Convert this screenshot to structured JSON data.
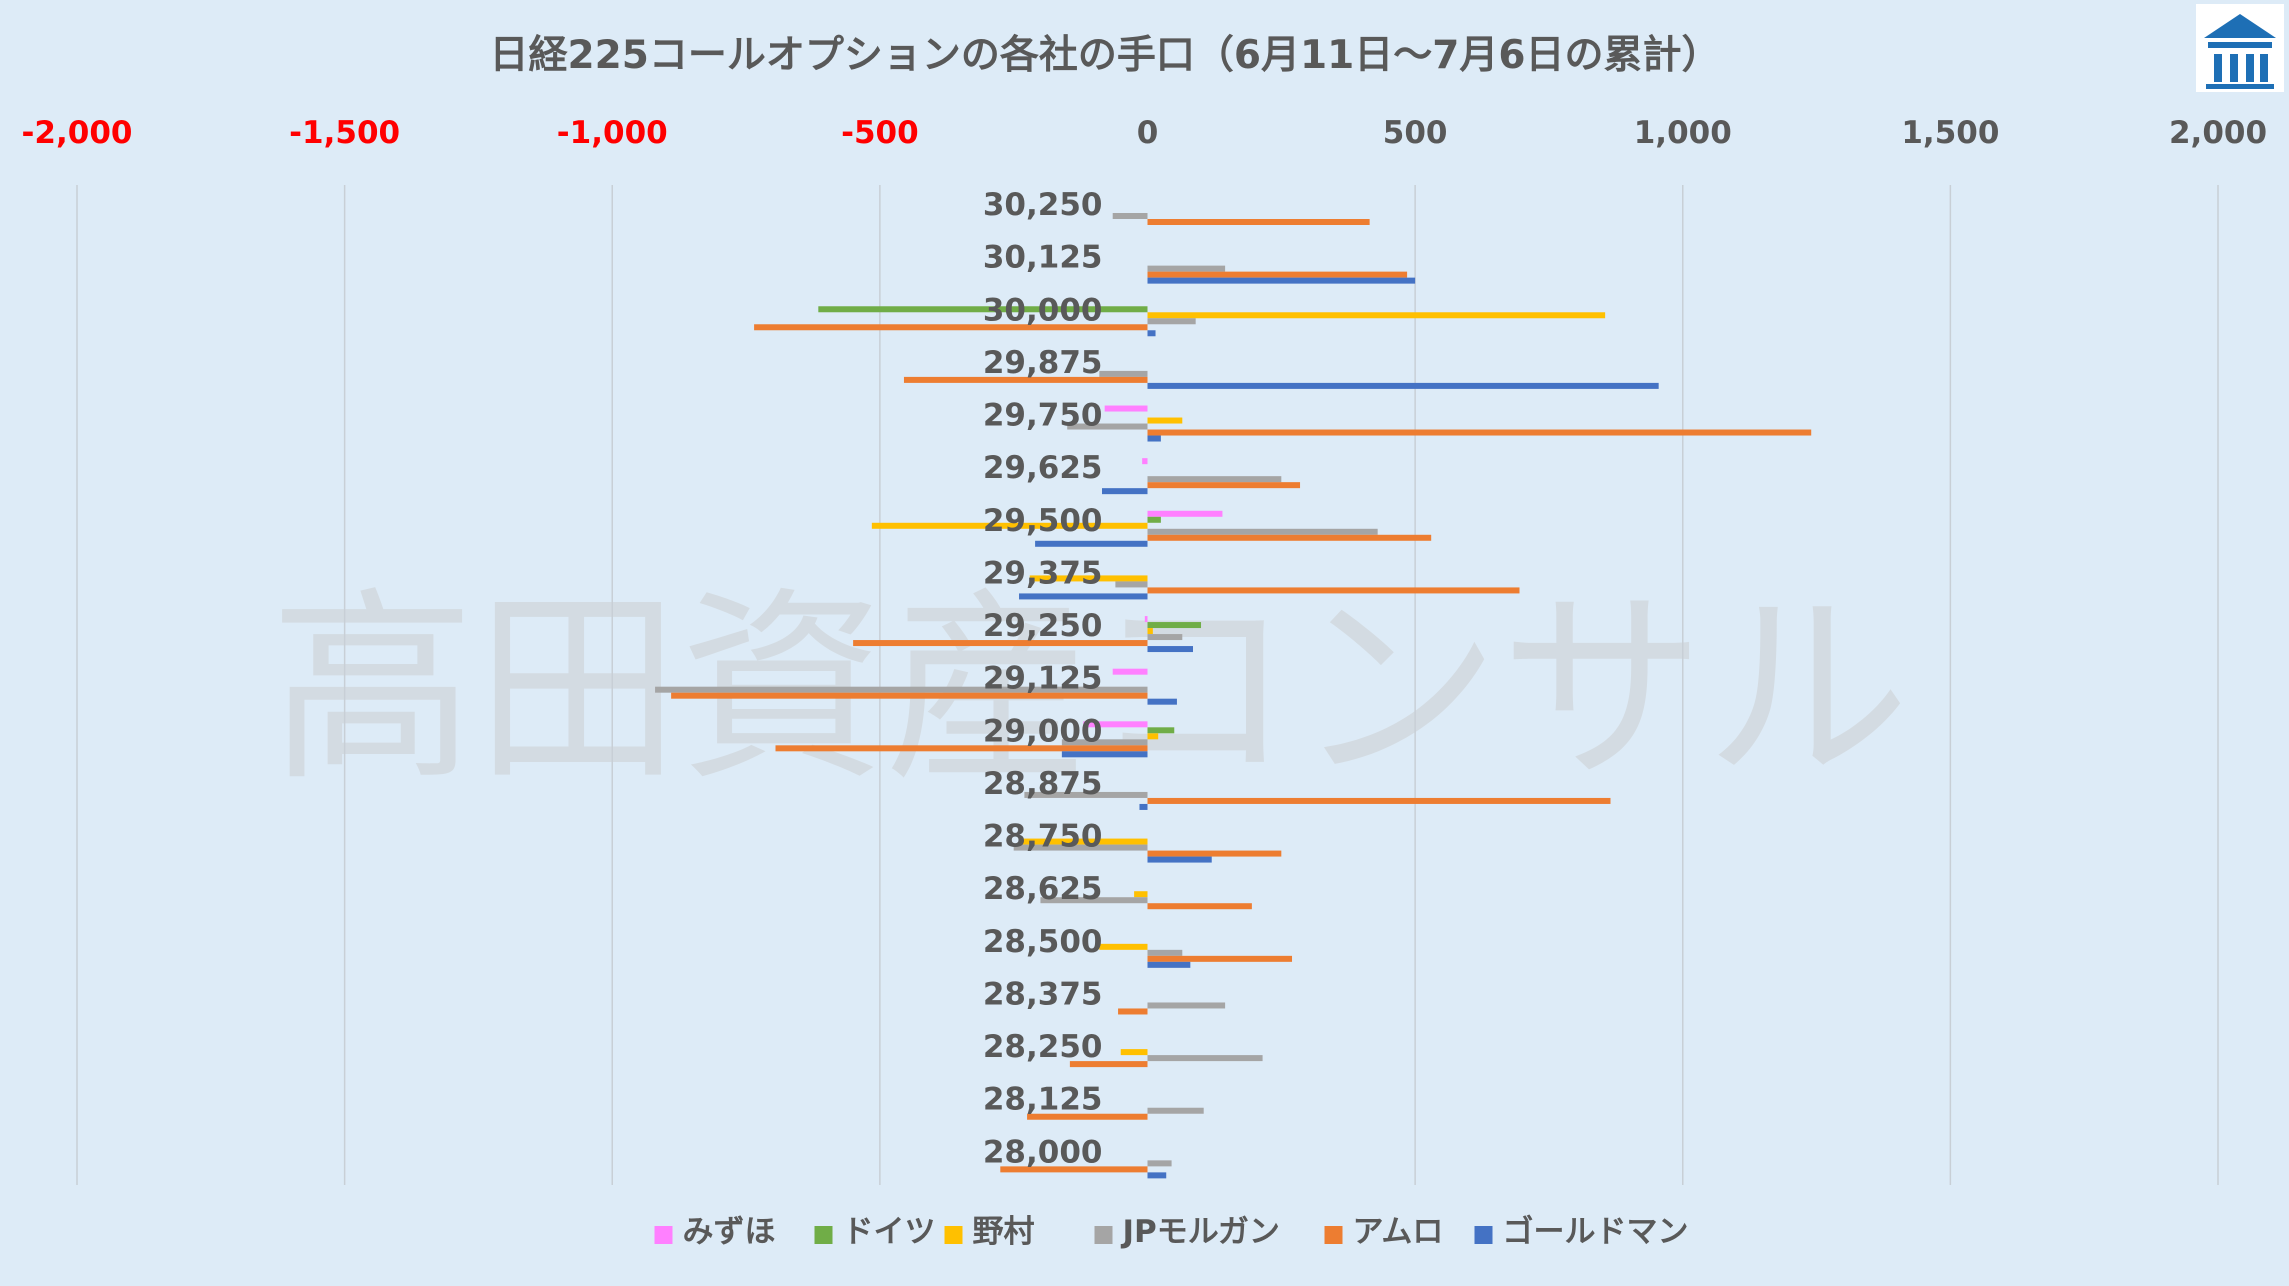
{
  "colors": {
    "background": "#ddebf7",
    "grid": "#c8cfd6",
    "negative_tick": "#ff0000",
    "text": "#595959",
    "logo_bg": "#ffffff",
    "logo_fg": "#1e6fb5"
  },
  "logo": {
    "icon": "building-logo-icon"
  },
  "watermark": "高田資産コンサル",
  "chart_data": {
    "type": "bar",
    "orientation": "horizontal",
    "title": "日経225コールオプションの各社の手口（6月11日～7月6日の累計）",
    "xlim": [
      -2000,
      2000
    ],
    "x_ticks": [
      -2000,
      -1500,
      -1000,
      -500,
      0,
      500,
      1000,
      1500,
      2000
    ],
    "x_tick_labels": [
      "-2,000",
      "-1,500",
      "-1,000",
      "-500",
      "0",
      "500",
      "1,000",
      "1,500",
      "2,000"
    ],
    "grid": true,
    "legend_position": "bottom",
    "categories": [
      "30,250",
      "30,125",
      "30,000",
      "29,875",
      "29,750",
      "29,625",
      "29,500",
      "29,375",
      "29,250",
      "29,125",
      "29,000",
      "28,875",
      "28,750",
      "28,625",
      "28,500",
      "28,375",
      "28,250",
      "28,125",
      "28,000"
    ],
    "series": [
      {
        "name": "みずほ",
        "color": "#ff80ff",
        "values": [
          0,
          0,
          0,
          0,
          -80,
          -10,
          140,
          0,
          -5,
          -65,
          -120,
          0,
          0,
          0,
          0,
          0,
          0,
          0,
          0
        ]
      },
      {
        "name": "ドイツ",
        "color": "#70ad47",
        "values": [
          0,
          0,
          -615,
          0,
          0,
          0,
          25,
          0,
          100,
          0,
          50,
          0,
          0,
          0,
          0,
          0,
          0,
          0,
          0
        ]
      },
      {
        "name": "野村",
        "color": "#ffc000",
        "values": [
          0,
          0,
          855,
          0,
          65,
          0,
          -515,
          -220,
          10,
          0,
          20,
          0,
          -240,
          -25,
          -90,
          0,
          -50,
          0,
          0
        ]
      },
      {
        "name": "JPモルガン",
        "color": "#a5a5a5",
        "values": [
          -65,
          145,
          90,
          -90,
          -150,
          250,
          430,
          -60,
          65,
          -920,
          -160,
          -230,
          -250,
          -200,
          65,
          145,
          215,
          105,
          45
        ]
      },
      {
        "name": "アムロ",
        "color": "#ed7d31",
        "values": [
          415,
          485,
          -735,
          -455,
          1240,
          285,
          530,
          695,
          -550,
          -890,
          -695,
          865,
          250,
          195,
          270,
          -55,
          -145,
          -225,
          -275
        ]
      },
      {
        "name": "ゴールドマン",
        "color": "#4472c4",
        "values": [
          0,
          500,
          15,
          955,
          25,
          -85,
          -210,
          -240,
          85,
          55,
          -160,
          -15,
          120,
          0,
          80,
          0,
          0,
          0,
          35
        ]
      }
    ]
  }
}
